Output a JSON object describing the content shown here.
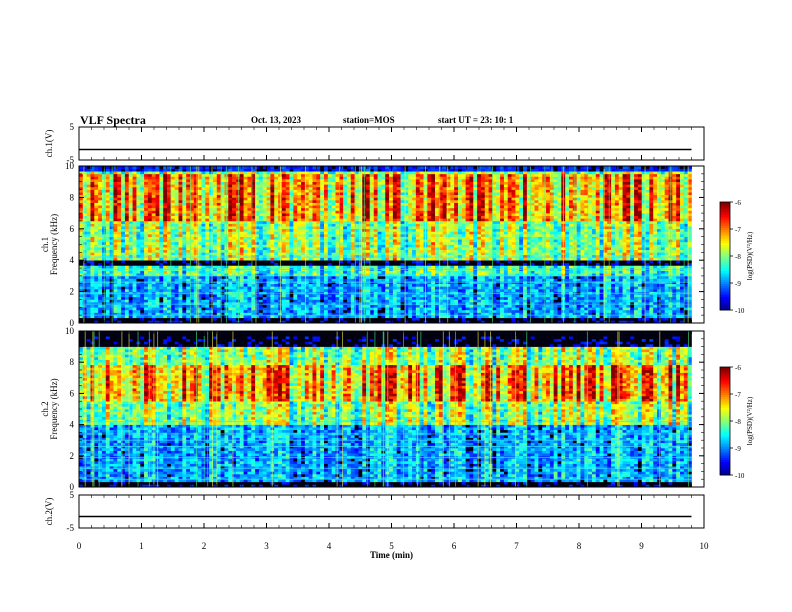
{
  "header": {
    "title": "VLF Spectra",
    "date": "Oct. 13, 2023",
    "station": "station=MOS",
    "start": "start  UT  =   23: 10: 1"
  },
  "chart_data": [
    {
      "type": "line",
      "panel": "ch1-voltage",
      "ylabel": "ch.1(V)",
      "ylim": [
        -5,
        5
      ],
      "yticks": [
        "5",
        "-5"
      ],
      "series": [
        {
          "x": [
            0,
            9.8
          ],
          "values": [
            -1.8,
            -1.8
          ]
        }
      ]
    },
    {
      "type": "heatmap",
      "panel": "ch1-spectrogram",
      "ylabel": "ch.1\nFrequency (kHz)",
      "ylim": [
        0,
        10
      ],
      "yticks": [
        "0",
        "2",
        "4",
        "6",
        "8",
        "10"
      ],
      "xlim": [
        0,
        10
      ],
      "x_data_end": 9.8,
      "colorbar": {
        "label": "log(PSD)(V²/Hz)",
        "range": [
          -10,
          -6
        ],
        "ticks": [
          "-6",
          "-7",
          "-8",
          "-9",
          "-10"
        ]
      },
      "bands": [
        {
          "from": 4.0,
          "to": 10.0,
          "level": 0.55
        },
        {
          "from": 6.5,
          "to": 9.5,
          "level": 0.75
        },
        {
          "from": 3.0,
          "to": 3.6,
          "level": 0.45
        },
        {
          "from": 0.3,
          "to": 3.0,
          "level": 0.3
        }
      ]
    },
    {
      "type": "heatmap",
      "panel": "ch2-spectrogram",
      "ylabel": "ch.2\nFrequency (kHz)",
      "ylim": [
        0,
        10
      ],
      "yticks": [
        "0",
        "2",
        "4",
        "6",
        "8",
        "10"
      ],
      "xlim": [
        0,
        10
      ],
      "x_data_end": 9.8,
      "colorbar": {
        "label": "log(PSD)(V²/Hz)",
        "range": [
          -10,
          -6
        ],
        "ticks": [
          "-6",
          "-7",
          "-8",
          "-9",
          "-10"
        ]
      },
      "bands": [
        {
          "from": 4.0,
          "to": 9.0,
          "level": 0.55
        },
        {
          "from": 5.5,
          "to": 7.8,
          "level": 0.75
        },
        {
          "from": 0.3,
          "to": 4.0,
          "level": 0.3
        }
      ]
    },
    {
      "type": "line",
      "panel": "ch2-voltage",
      "ylabel": "ch.2(V)",
      "ylim": [
        -5,
        5
      ],
      "yticks": [
        "5",
        "-5"
      ],
      "series": [
        {
          "x": [
            0,
            9.8
          ],
          "values": [
            -1.5,
            -1.5
          ]
        }
      ]
    }
  ],
  "x_axis": {
    "label": "Time  (min)",
    "ticks": [
      "0",
      "1",
      "2",
      "3",
      "4",
      "5",
      "6",
      "7",
      "8",
      "9",
      "10"
    ]
  }
}
